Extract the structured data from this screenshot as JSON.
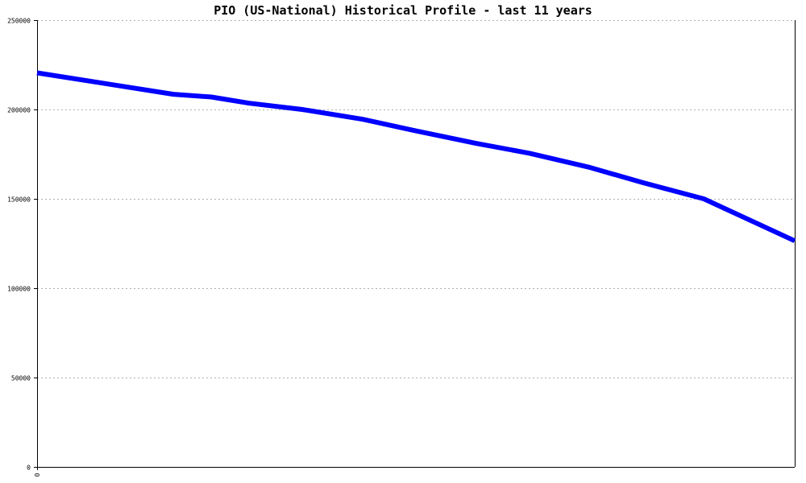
{
  "chart_data": {
    "type": "line",
    "title": "PIO (US-National) Historical Profile - last 11 years",
    "xlabel": "",
    "ylabel": "",
    "ylim": [
      0,
      250000
    ],
    "yticks": [
      0,
      50000,
      100000,
      150000,
      200000,
      250000
    ],
    "ytick_labels": [
      "0",
      "50000",
      "100000",
      "150000",
      "200000",
      "250000"
    ],
    "xtick_labels": [
      "0"
    ],
    "grid": true,
    "series": [
      {
        "color": "#0000ff",
        "x": [
          0,
          0.18,
          0.23,
          0.28,
          0.35,
          0.43,
          0.5,
          0.58,
          0.65,
          0.73,
          0.8,
          0.88,
          1.0
        ],
        "values": [
          220500,
          208500,
          207000,
          203500,
          200000,
          194500,
          188000,
          181000,
          175500,
          167500,
          159000,
          150000,
          126500
        ]
      }
    ]
  }
}
